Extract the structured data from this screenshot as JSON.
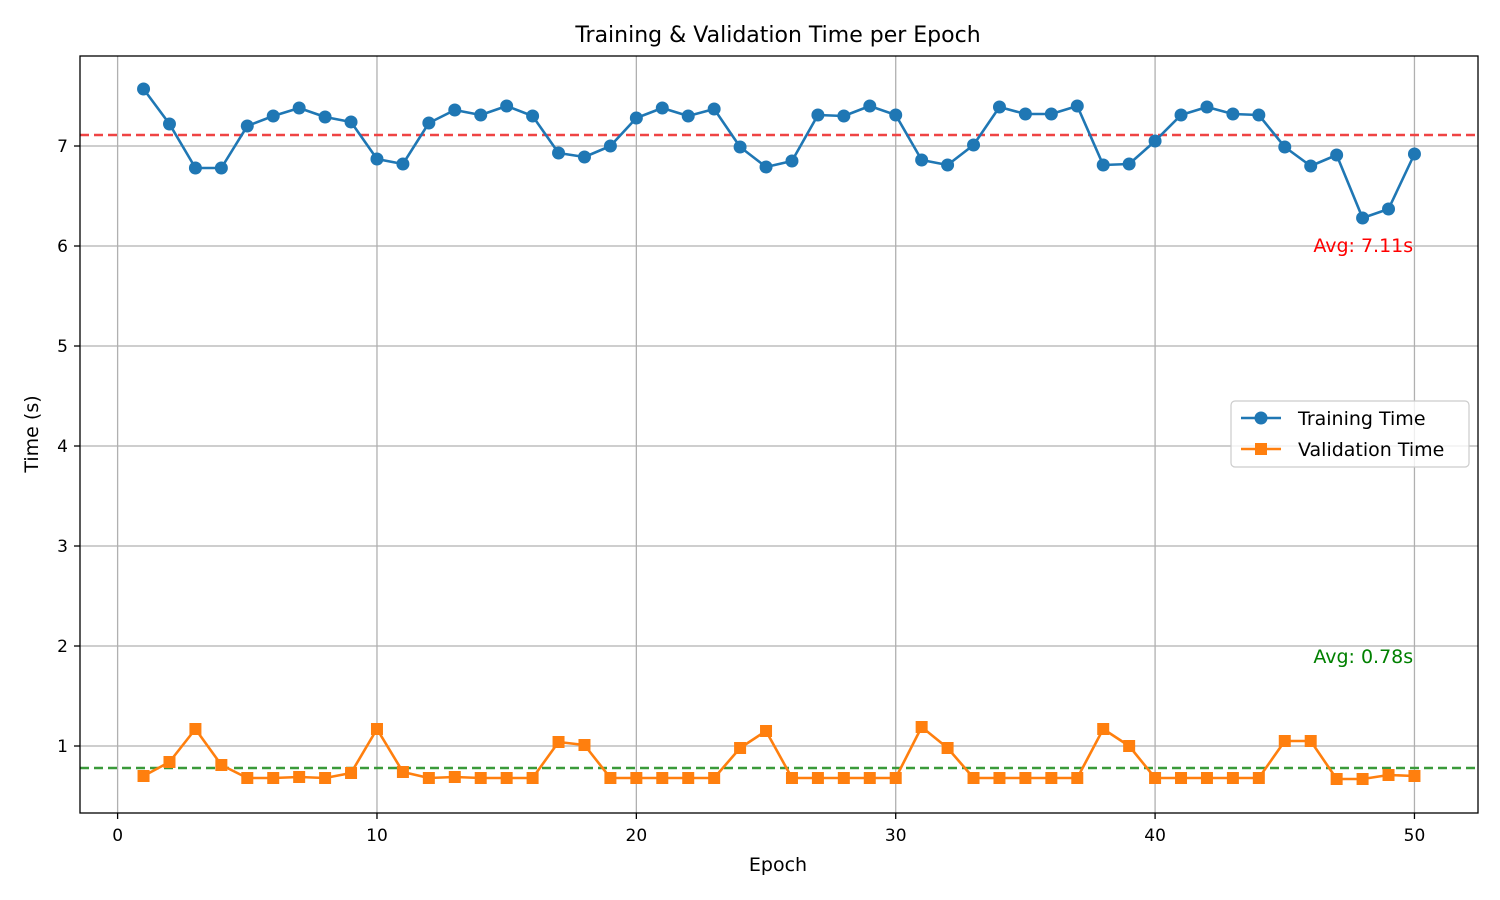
{
  "chart_data": {
    "type": "line",
    "title": "Training & Validation Time per Epoch",
    "xlabel": "Epoch",
    "ylabel": "Time (s)",
    "xlim": [
      -1.45,
      52.45
    ],
    "ylim": [
      0.33,
      7.9
    ],
    "xticks": [
      0,
      10,
      20,
      30,
      40,
      50
    ],
    "yticks": [
      1,
      2,
      3,
      4,
      5,
      6,
      7
    ],
    "grid": true,
    "legend_position": "center-right",
    "x": [
      1,
      2,
      3,
      4,
      5,
      6,
      7,
      8,
      9,
      10,
      11,
      12,
      13,
      14,
      15,
      16,
      17,
      18,
      19,
      20,
      21,
      22,
      23,
      24,
      25,
      26,
      27,
      28,
      29,
      30,
      31,
      32,
      33,
      34,
      35,
      36,
      37,
      38,
      39,
      40,
      41,
      42,
      43,
      44,
      45,
      46,
      47,
      48,
      49,
      50
    ],
    "series": [
      {
        "name": "Training Time",
        "color": "#1f77b4",
        "marker": "circle",
        "values": [
          7.57,
          7.22,
          6.78,
          6.78,
          7.2,
          7.3,
          7.38,
          7.29,
          7.24,
          6.87,
          6.82,
          7.23,
          7.36,
          7.31,
          7.4,
          7.3,
          6.93,
          6.89,
          7.0,
          7.28,
          7.38,
          7.3,
          7.37,
          6.99,
          6.79,
          6.85,
          7.31,
          7.3,
          7.4,
          7.31,
          6.86,
          6.81,
          7.01,
          7.39,
          7.32,
          7.32,
          7.4,
          6.81,
          6.82,
          7.05,
          7.31,
          7.39,
          7.32,
          7.31,
          6.99,
          6.8,
          6.91,
          6.28,
          6.37,
          6.92
        ]
      },
      {
        "name": "Validation Time",
        "color": "#ff7f0e",
        "marker": "square",
        "values": [
          0.7,
          0.84,
          1.17,
          0.81,
          0.68,
          0.68,
          0.69,
          0.68,
          0.73,
          1.17,
          0.74,
          0.68,
          0.69,
          0.68,
          0.68,
          0.68,
          1.04,
          1.01,
          0.68,
          0.68,
          0.68,
          0.68,
          0.68,
          0.98,
          1.15,
          0.68,
          0.68,
          0.68,
          0.68,
          0.68,
          1.19,
          0.98,
          0.68,
          0.68,
          0.68,
          0.68,
          0.68,
          1.17,
          1.0,
          0.68,
          0.68,
          0.68,
          0.68,
          0.68,
          1.05,
          1.05,
          0.67,
          0.67,
          0.71,
          0.7
        ]
      }
    ],
    "reference_lines": [
      {
        "value": 7.11,
        "color": "#ef4444",
        "label": "Avg: 7.11s"
      },
      {
        "value": 0.78,
        "color": "#3a9a3a",
        "label": "Avg: 0.78s"
      }
    ],
    "annotation_colors": {
      "training": "#ff0000",
      "validation": "#008000"
    }
  }
}
